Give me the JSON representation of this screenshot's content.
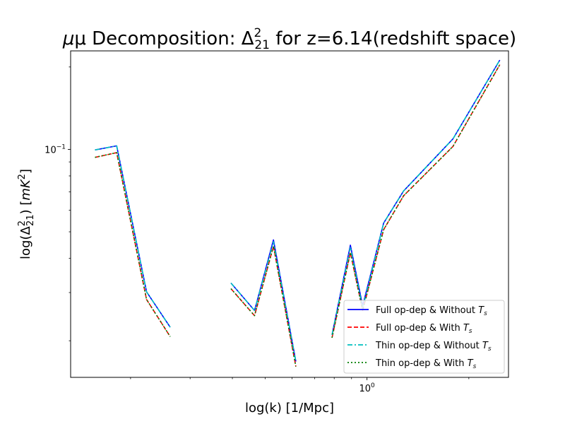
{
  "chart_data": {
    "type": "line",
    "title_prefix": "μ Decomposition: Δ",
    "title_sup": "2",
    "title_sub": "21",
    "title_suffix": " for z=6.14(redshift space)",
    "xlabel": "log(k) [1/Mpc]",
    "ylabel_prefix": "log(Δ",
    "ylabel_sup": "2",
    "ylabel_sub": "21",
    "ylabel_mid": ") [",
    "ylabel_unit_main": "mK",
    "ylabel_unit_sup": "2",
    "ylabel_close": "]",
    "x_scale": "log",
    "y_scale": "log",
    "xlim": [
      0.133,
      2.62
    ],
    "ylim": [
      0.0147,
      0.229
    ],
    "grid": false,
    "legend_position": "lower-right",
    "x_ticks": [
      {
        "value": 1.0,
        "base": "10",
        "exp": "0"
      }
    ],
    "y_ticks": [
      {
        "value": 0.1,
        "base": "10",
        "exp": "−1"
      }
    ],
    "series": [
      {
        "name_prefix": "Full op-dep & Without ",
        "name_T": "T",
        "name_sub": "s",
        "color": "#0000ff",
        "style": "solid",
        "segments": [
          {
            "x": [
              0.157,
              0.182,
              0.223,
              0.262
            ],
            "y": [
              0.0995,
              0.103,
              0.0302,
              0.0224
            ]
          },
          {
            "x": [
              0.396,
              0.465,
              0.529,
              0.616
            ],
            "y": [
              0.0325,
              0.0258,
              0.0467,
              0.0168
            ]
          },
          {
            "x": [
              0.788,
              0.893,
              0.971,
              1.12,
              1.283,
              1.795,
              2.47
            ],
            "y": [
              0.021,
              0.0447,
              0.0268,
              0.0538,
              0.0705,
              0.1092,
              0.212
            ]
          }
        ]
      },
      {
        "name_prefix": "Full op-dep & With ",
        "name_T": "T",
        "name_sub": "s",
        "color": "#ff0000",
        "style": "dashed",
        "segments": [
          {
            "x": [
              0.157,
              0.182,
              0.223,
              0.262
            ],
            "y": [
              0.0935,
              0.0973,
              0.0283,
              0.0207
            ]
          },
          {
            "x": [
              0.396,
              0.465,
              0.529,
              0.616
            ],
            "y": [
              0.031,
              0.0247,
              0.0443,
              0.0161
            ]
          },
          {
            "x": [
              0.788,
              0.893,
              0.971,
              1.12,
              1.283,
              1.795,
              2.47
            ],
            "y": [
              0.0205,
              0.042,
              0.0258,
              0.0509,
              0.0677,
              0.1025,
              0.204
            ]
          }
        ]
      },
      {
        "name_prefix": "Thin op-dep & Without ",
        "name_T": "T",
        "name_sub": "s",
        "color": "#00bfbf",
        "style": "dashdot",
        "segments": [
          {
            "x": [
              0.157,
              0.182,
              0.223,
              0.262
            ],
            "y": [
              0.0995,
              0.103,
              0.0302,
              0.0224
            ]
          },
          {
            "x": [
              0.396,
              0.465,
              0.529,
              0.616
            ],
            "y": [
              0.0325,
              0.0258,
              0.046,
              0.0168
            ]
          },
          {
            "x": [
              0.788,
              0.893,
              0.971,
              1.12,
              1.283,
              1.795,
              2.47
            ],
            "y": [
              0.021,
              0.044,
              0.0263,
              0.0538,
              0.0705,
              0.1092,
              0.212
            ]
          }
        ]
      },
      {
        "name_prefix": "Thin op-dep & With ",
        "name_T": "T",
        "name_sub": "s",
        "color": "#007f00",
        "style": "dotted",
        "segments": [
          {
            "x": [
              0.157,
              0.182,
              0.223,
              0.262
            ],
            "y": [
              0.0935,
              0.0973,
              0.0283,
              0.0207
            ]
          },
          {
            "x": [
              0.396,
              0.465,
              0.529,
              0.616
            ],
            "y": [
              0.031,
              0.0247,
              0.0443,
              0.0161
            ]
          },
          {
            "x": [
              0.788,
              0.893,
              0.971,
              1.12,
              1.283,
              1.795,
              2.47
            ],
            "y": [
              0.0205,
              0.042,
              0.0258,
              0.0509,
              0.0677,
              0.1025,
              0.204
            ]
          }
        ]
      }
    ]
  }
}
